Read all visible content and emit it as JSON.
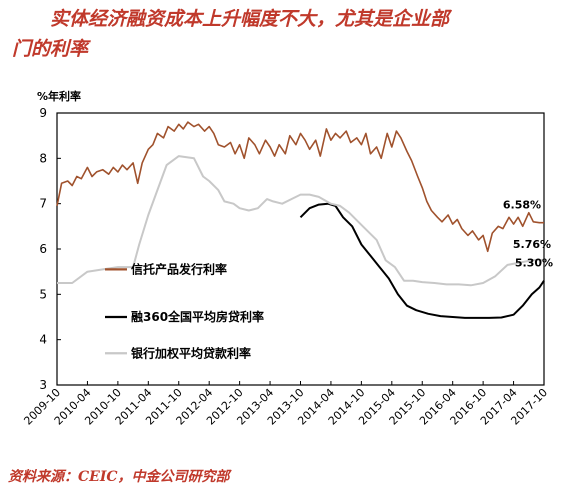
{
  "title": {
    "line1": "实体经济融资成本上升幅度不大，尤其是企业部",
    "line2": "门的利率"
  },
  "source": "资料来源：CEIC，中金公司研究部",
  "colors": {
    "title": "#c0392b",
    "series1": "#a0522d",
    "series2": "#000000",
    "series3": "#c8c8c8",
    "axis": "#000000"
  },
  "chart_data": {
    "type": "line",
    "ylabel": "%年利率",
    "ylim": [
      3,
      9
    ],
    "yticks": [
      3,
      4,
      5,
      6,
      7,
      8,
      9
    ],
    "xlabels": [
      "2009-10",
      "2010-04",
      "2010-10",
      "2011-04",
      "2011-10",
      "2012-04",
      "2012-10",
      "2013-04",
      "2013-10",
      "2014-04",
      "2014-10",
      "2015-04",
      "2015-10",
      "2016-04",
      "2016-10",
      "2017-04",
      "2017-10"
    ],
    "grid": false,
    "legend_placement": "left-middle",
    "series": [
      {
        "name": "信托产品发行利率",
        "color": "#a0522d",
        "points": [
          [
            0,
            6.95
          ],
          [
            0.15,
            7.45
          ],
          [
            0.35,
            7.5
          ],
          [
            0.5,
            7.4
          ],
          [
            0.65,
            7.6
          ],
          [
            0.8,
            7.55
          ],
          [
            1.0,
            7.8
          ],
          [
            1.15,
            7.6
          ],
          [
            1.3,
            7.7
          ],
          [
            1.5,
            7.75
          ],
          [
            1.7,
            7.65
          ],
          [
            1.85,
            7.8
          ],
          [
            2.0,
            7.7
          ],
          [
            2.15,
            7.85
          ],
          [
            2.3,
            7.75
          ],
          [
            2.5,
            7.9
          ],
          [
            2.65,
            7.45
          ],
          [
            2.8,
            7.9
          ],
          [
            3.0,
            8.2
          ],
          [
            3.15,
            8.3
          ],
          [
            3.3,
            8.55
          ],
          [
            3.5,
            8.45
          ],
          [
            3.65,
            8.7
          ],
          [
            3.85,
            8.6
          ],
          [
            4.0,
            8.75
          ],
          [
            4.15,
            8.65
          ],
          [
            4.3,
            8.8
          ],
          [
            4.5,
            8.7
          ],
          [
            4.65,
            8.75
          ],
          [
            4.85,
            8.6
          ],
          [
            5.0,
            8.7
          ],
          [
            5.15,
            8.55
          ],
          [
            5.3,
            8.3
          ],
          [
            5.5,
            8.25
          ],
          [
            5.7,
            8.35
          ],
          [
            5.85,
            8.1
          ],
          [
            6.0,
            8.3
          ],
          [
            6.15,
            8.0
          ],
          [
            6.3,
            8.45
          ],
          [
            6.5,
            8.3
          ],
          [
            6.65,
            8.1
          ],
          [
            6.85,
            8.4
          ],
          [
            7.0,
            8.25
          ],
          [
            7.15,
            8.05
          ],
          [
            7.3,
            8.3
          ],
          [
            7.5,
            8.1
          ],
          [
            7.65,
            8.5
          ],
          [
            7.85,
            8.3
          ],
          [
            8.0,
            8.55
          ],
          [
            8.15,
            8.4
          ],
          [
            8.3,
            8.2
          ],
          [
            8.5,
            8.4
          ],
          [
            8.65,
            8.05
          ],
          [
            8.85,
            8.65
          ],
          [
            9.0,
            8.4
          ],
          [
            9.15,
            8.55
          ],
          [
            9.3,
            8.45
          ],
          [
            9.5,
            8.6
          ],
          [
            9.65,
            8.35
          ],
          [
            9.85,
            8.45
          ],
          [
            10.0,
            8.3
          ],
          [
            10.15,
            8.55
          ],
          [
            10.3,
            8.1
          ],
          [
            10.5,
            8.25
          ],
          [
            10.65,
            8.0
          ],
          [
            10.85,
            8.55
          ],
          [
            11.0,
            8.25
          ],
          [
            11.15,
            8.6
          ],
          [
            11.3,
            8.45
          ],
          [
            11.5,
            8.15
          ],
          [
            11.65,
            7.95
          ],
          [
            11.85,
            7.6
          ],
          [
            12.0,
            7.35
          ],
          [
            12.15,
            7.05
          ],
          [
            12.3,
            6.85
          ],
          [
            12.5,
            6.7
          ],
          [
            12.65,
            6.6
          ],
          [
            12.85,
            6.75
          ],
          [
            13.0,
            6.55
          ],
          [
            13.15,
            6.65
          ],
          [
            13.3,
            6.45
          ],
          [
            13.5,
            6.3
          ],
          [
            13.65,
            6.4
          ],
          [
            13.85,
            6.2
          ],
          [
            14.0,
            6.3
          ],
          [
            14.15,
            5.95
          ],
          [
            14.3,
            6.35
          ],
          [
            14.5,
            6.5
          ],
          [
            14.65,
            6.45
          ],
          [
            14.85,
            6.7
          ],
          [
            15.0,
            6.55
          ],
          [
            15.15,
            6.7
          ],
          [
            15.3,
            6.5
          ],
          [
            15.5,
            6.8
          ],
          [
            15.65,
            6.6
          ],
          [
            15.85,
            6.58
          ],
          [
            16.0,
            6.58
          ]
        ]
      },
      {
        "name": "融360全国平均房贷利率",
        "color": "#000000",
        "points": [
          [
            8.0,
            6.7
          ],
          [
            8.3,
            6.9
          ],
          [
            8.6,
            6.98
          ],
          [
            8.9,
            7.0
          ],
          [
            9.15,
            6.95
          ],
          [
            9.4,
            6.7
          ],
          [
            9.7,
            6.5
          ],
          [
            10.0,
            6.1
          ],
          [
            10.3,
            5.85
          ],
          [
            10.6,
            5.6
          ],
          [
            10.9,
            5.35
          ],
          [
            11.2,
            5.0
          ],
          [
            11.5,
            4.75
          ],
          [
            11.8,
            4.65
          ],
          [
            12.2,
            4.57
          ],
          [
            12.6,
            4.52
          ],
          [
            13.0,
            4.5
          ],
          [
            13.4,
            4.48
          ],
          [
            13.8,
            4.48
          ],
          [
            14.2,
            4.48
          ],
          [
            14.6,
            4.49
          ],
          [
            15.0,
            4.55
          ],
          [
            15.3,
            4.75
          ],
          [
            15.6,
            5.0
          ],
          [
            15.85,
            5.15
          ],
          [
            16.0,
            5.3
          ]
        ]
      },
      {
        "name": "银行加权平均贷款利率",
        "color": "#c8c8c8",
        "points": [
          [
            0,
            5.25
          ],
          [
            0.5,
            5.25
          ],
          [
            1.0,
            5.5
          ],
          [
            1.5,
            5.55
          ],
          [
            2.0,
            5.6
          ],
          [
            2.5,
            5.6
          ],
          [
            2.7,
            6.1
          ],
          [
            3.0,
            6.75
          ],
          [
            3.3,
            7.3
          ],
          [
            3.6,
            7.85
          ],
          [
            4.0,
            8.05
          ],
          [
            4.5,
            8.0
          ],
          [
            4.8,
            7.6
          ],
          [
            5.0,
            7.5
          ],
          [
            5.3,
            7.3
          ],
          [
            5.5,
            7.05
          ],
          [
            5.8,
            7.0
          ],
          [
            6.0,
            6.9
          ],
          [
            6.3,
            6.85
          ],
          [
            6.6,
            6.9
          ],
          [
            6.9,
            7.1
          ],
          [
            7.1,
            7.05
          ],
          [
            7.4,
            7.0
          ],
          [
            7.7,
            7.1
          ],
          [
            8.0,
            7.2
          ],
          [
            8.3,
            7.2
          ],
          [
            8.6,
            7.15
          ],
          [
            9.0,
            7.0
          ],
          [
            9.3,
            6.95
          ],
          [
            9.6,
            6.8
          ],
          [
            9.9,
            6.6
          ],
          [
            10.2,
            6.4
          ],
          [
            10.5,
            6.2
          ],
          [
            10.8,
            5.75
          ],
          [
            11.1,
            5.6
          ],
          [
            11.4,
            5.3
          ],
          [
            11.7,
            5.3
          ],
          [
            12.0,
            5.27
          ],
          [
            12.4,
            5.25
          ],
          [
            12.8,
            5.22
          ],
          [
            13.2,
            5.22
          ],
          [
            13.6,
            5.2
          ],
          [
            14.0,
            5.25
          ],
          [
            14.4,
            5.4
          ],
          [
            14.8,
            5.65
          ],
          [
            15.2,
            5.7
          ],
          [
            15.6,
            5.75
          ],
          [
            16.0,
            5.76
          ]
        ]
      }
    ],
    "annotations": [
      {
        "text": "6.58%",
        "series": 0
      },
      {
        "text": "5.76%",
        "series": 2
      },
      {
        "text": "5.30%",
        "series": 1
      }
    ]
  }
}
